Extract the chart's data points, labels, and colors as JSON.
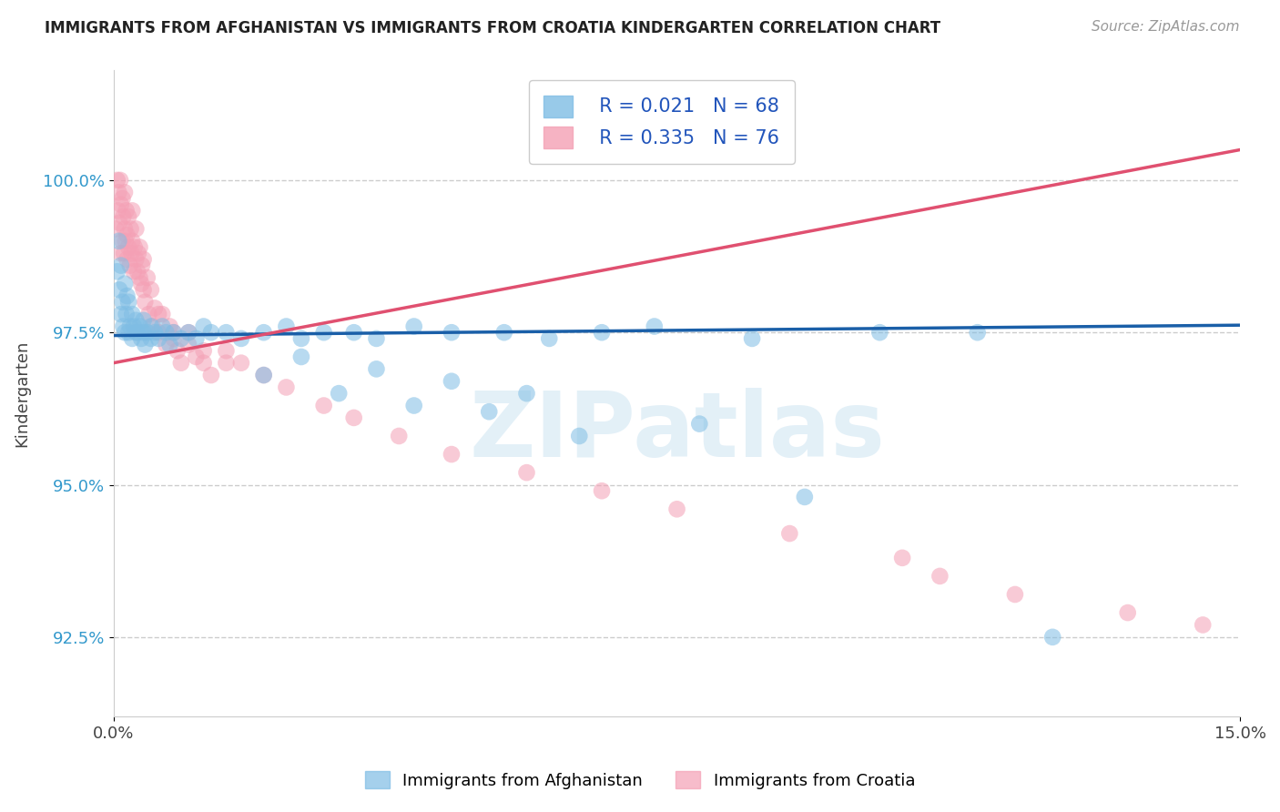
{
  "title": "IMMIGRANTS FROM AFGHANISTAN VS IMMIGRANTS FROM CROATIA KINDERGARTEN CORRELATION CHART",
  "source": "Source: ZipAtlas.com",
  "ylabel": "Kindergarten",
  "xlim": [
    0.0,
    15.0
  ],
  "ylim": [
    91.2,
    101.8
  ],
  "yticks": [
    92.5,
    95.0,
    97.5,
    100.0
  ],
  "ytick_labels": [
    "92.5%",
    "95.0%",
    "97.5%",
    "100.0%"
  ],
  "xticks": [
    0.0,
    15.0
  ],
  "xtick_labels": [
    "0.0%",
    "15.0%"
  ],
  "watermark": "ZIPatlas",
  "legend_r1": "R = 0.021",
  "legend_n1": "N = 68",
  "legend_r2": "R = 0.335",
  "legend_n2": "N = 76",
  "color_afghanistan": "#7fbde4",
  "color_croatia": "#f4a0b5",
  "line_color_afghanistan": "#1a5fa8",
  "line_color_croatia": "#e05070",
  "background_color": "#ffffff",
  "afghanistan_x": [
    0.05,
    0.07,
    0.08,
    0.1,
    0.1,
    0.12,
    0.13,
    0.15,
    0.15,
    0.17,
    0.18,
    0.2,
    0.2,
    0.22,
    0.25,
    0.25,
    0.27,
    0.3,
    0.3,
    0.32,
    0.35,
    0.37,
    0.4,
    0.4,
    0.42,
    0.45,
    0.5,
    0.5,
    0.55,
    0.6,
    0.65,
    0.7,
    0.75,
    0.8,
    0.9,
    1.0,
    1.1,
    1.2,
    1.3,
    1.5,
    1.7,
    2.0,
    2.3,
    2.5,
    2.8,
    3.2,
    3.5,
    4.0,
    4.5,
    5.2,
    5.8,
    6.5,
    7.2,
    8.5,
    10.2,
    11.5,
    2.0,
    2.5,
    3.0,
    3.5,
    4.0,
    4.5,
    5.0,
    5.5,
    6.2,
    7.8,
    9.2,
    12.5
  ],
  "afghanistan_y": [
    98.5,
    99.0,
    98.2,
    97.8,
    98.6,
    98.0,
    97.6,
    98.3,
    97.5,
    97.8,
    98.1,
    97.5,
    98.0,
    97.6,
    97.8,
    97.4,
    97.6,
    97.5,
    97.7,
    97.5,
    97.6,
    97.4,
    97.5,
    97.7,
    97.3,
    97.5,
    97.4,
    97.6,
    97.5,
    97.4,
    97.6,
    97.5,
    97.3,
    97.5,
    97.4,
    97.5,
    97.4,
    97.6,
    97.5,
    97.5,
    97.4,
    97.5,
    97.6,
    97.4,
    97.5,
    97.5,
    97.4,
    97.6,
    97.5,
    97.5,
    97.4,
    97.5,
    97.6,
    97.4,
    97.5,
    97.5,
    96.8,
    97.1,
    96.5,
    96.9,
    96.3,
    96.7,
    96.2,
    96.5,
    95.8,
    96.0,
    94.8,
    92.5
  ],
  "croatia_x": [
    0.03,
    0.05,
    0.06,
    0.07,
    0.08,
    0.09,
    0.1,
    0.1,
    0.12,
    0.12,
    0.13,
    0.14,
    0.15,
    0.15,
    0.16,
    0.17,
    0.18,
    0.18,
    0.2,
    0.2,
    0.22,
    0.23,
    0.24,
    0.25,
    0.25,
    0.27,
    0.28,
    0.3,
    0.3,
    0.32,
    0.33,
    0.35,
    0.35,
    0.37,
    0.38,
    0.4,
    0.4,
    0.42,
    0.45,
    0.47,
    0.5,
    0.52,
    0.55,
    0.6,
    0.65,
    0.7,
    0.75,
    0.8,
    0.85,
    0.9,
    1.0,
    1.1,
    1.2,
    1.3,
    1.5,
    1.7,
    2.0,
    2.3,
    2.8,
    3.2,
    3.8,
    4.5,
    5.5,
    6.5,
    7.5,
    9.0,
    10.5,
    11.0,
    12.0,
    13.5,
    14.5,
    0.6,
    0.8,
    1.0,
    1.2,
    1.5
  ],
  "croatia_y": [
    99.2,
    100.0,
    99.5,
    99.8,
    99.3,
    100.0,
    99.6,
    98.8,
    99.7,
    99.0,
    99.4,
    98.8,
    99.2,
    99.8,
    99.0,
    99.5,
    98.7,
    99.1,
    98.9,
    99.4,
    98.6,
    99.2,
    98.8,
    99.0,
    99.5,
    98.5,
    98.9,
    98.7,
    99.2,
    98.5,
    98.8,
    98.4,
    98.9,
    98.3,
    98.6,
    98.2,
    98.7,
    98.0,
    98.4,
    97.8,
    98.2,
    97.6,
    97.9,
    97.5,
    97.8,
    97.3,
    97.6,
    97.5,
    97.2,
    97.0,
    97.3,
    97.1,
    97.0,
    96.8,
    97.2,
    97.0,
    96.8,
    96.6,
    96.3,
    96.1,
    95.8,
    95.5,
    95.2,
    94.9,
    94.6,
    94.2,
    93.8,
    93.5,
    93.2,
    92.9,
    92.7,
    97.8,
    97.4,
    97.5,
    97.2,
    97.0
  ],
  "afg_trendline_x": [
    0.0,
    15.0
  ],
  "afg_trendline_y": [
    97.45,
    97.62
  ],
  "cro_trendline_x": [
    0.0,
    15.0
  ],
  "cro_trendline_y": [
    97.0,
    100.5
  ]
}
